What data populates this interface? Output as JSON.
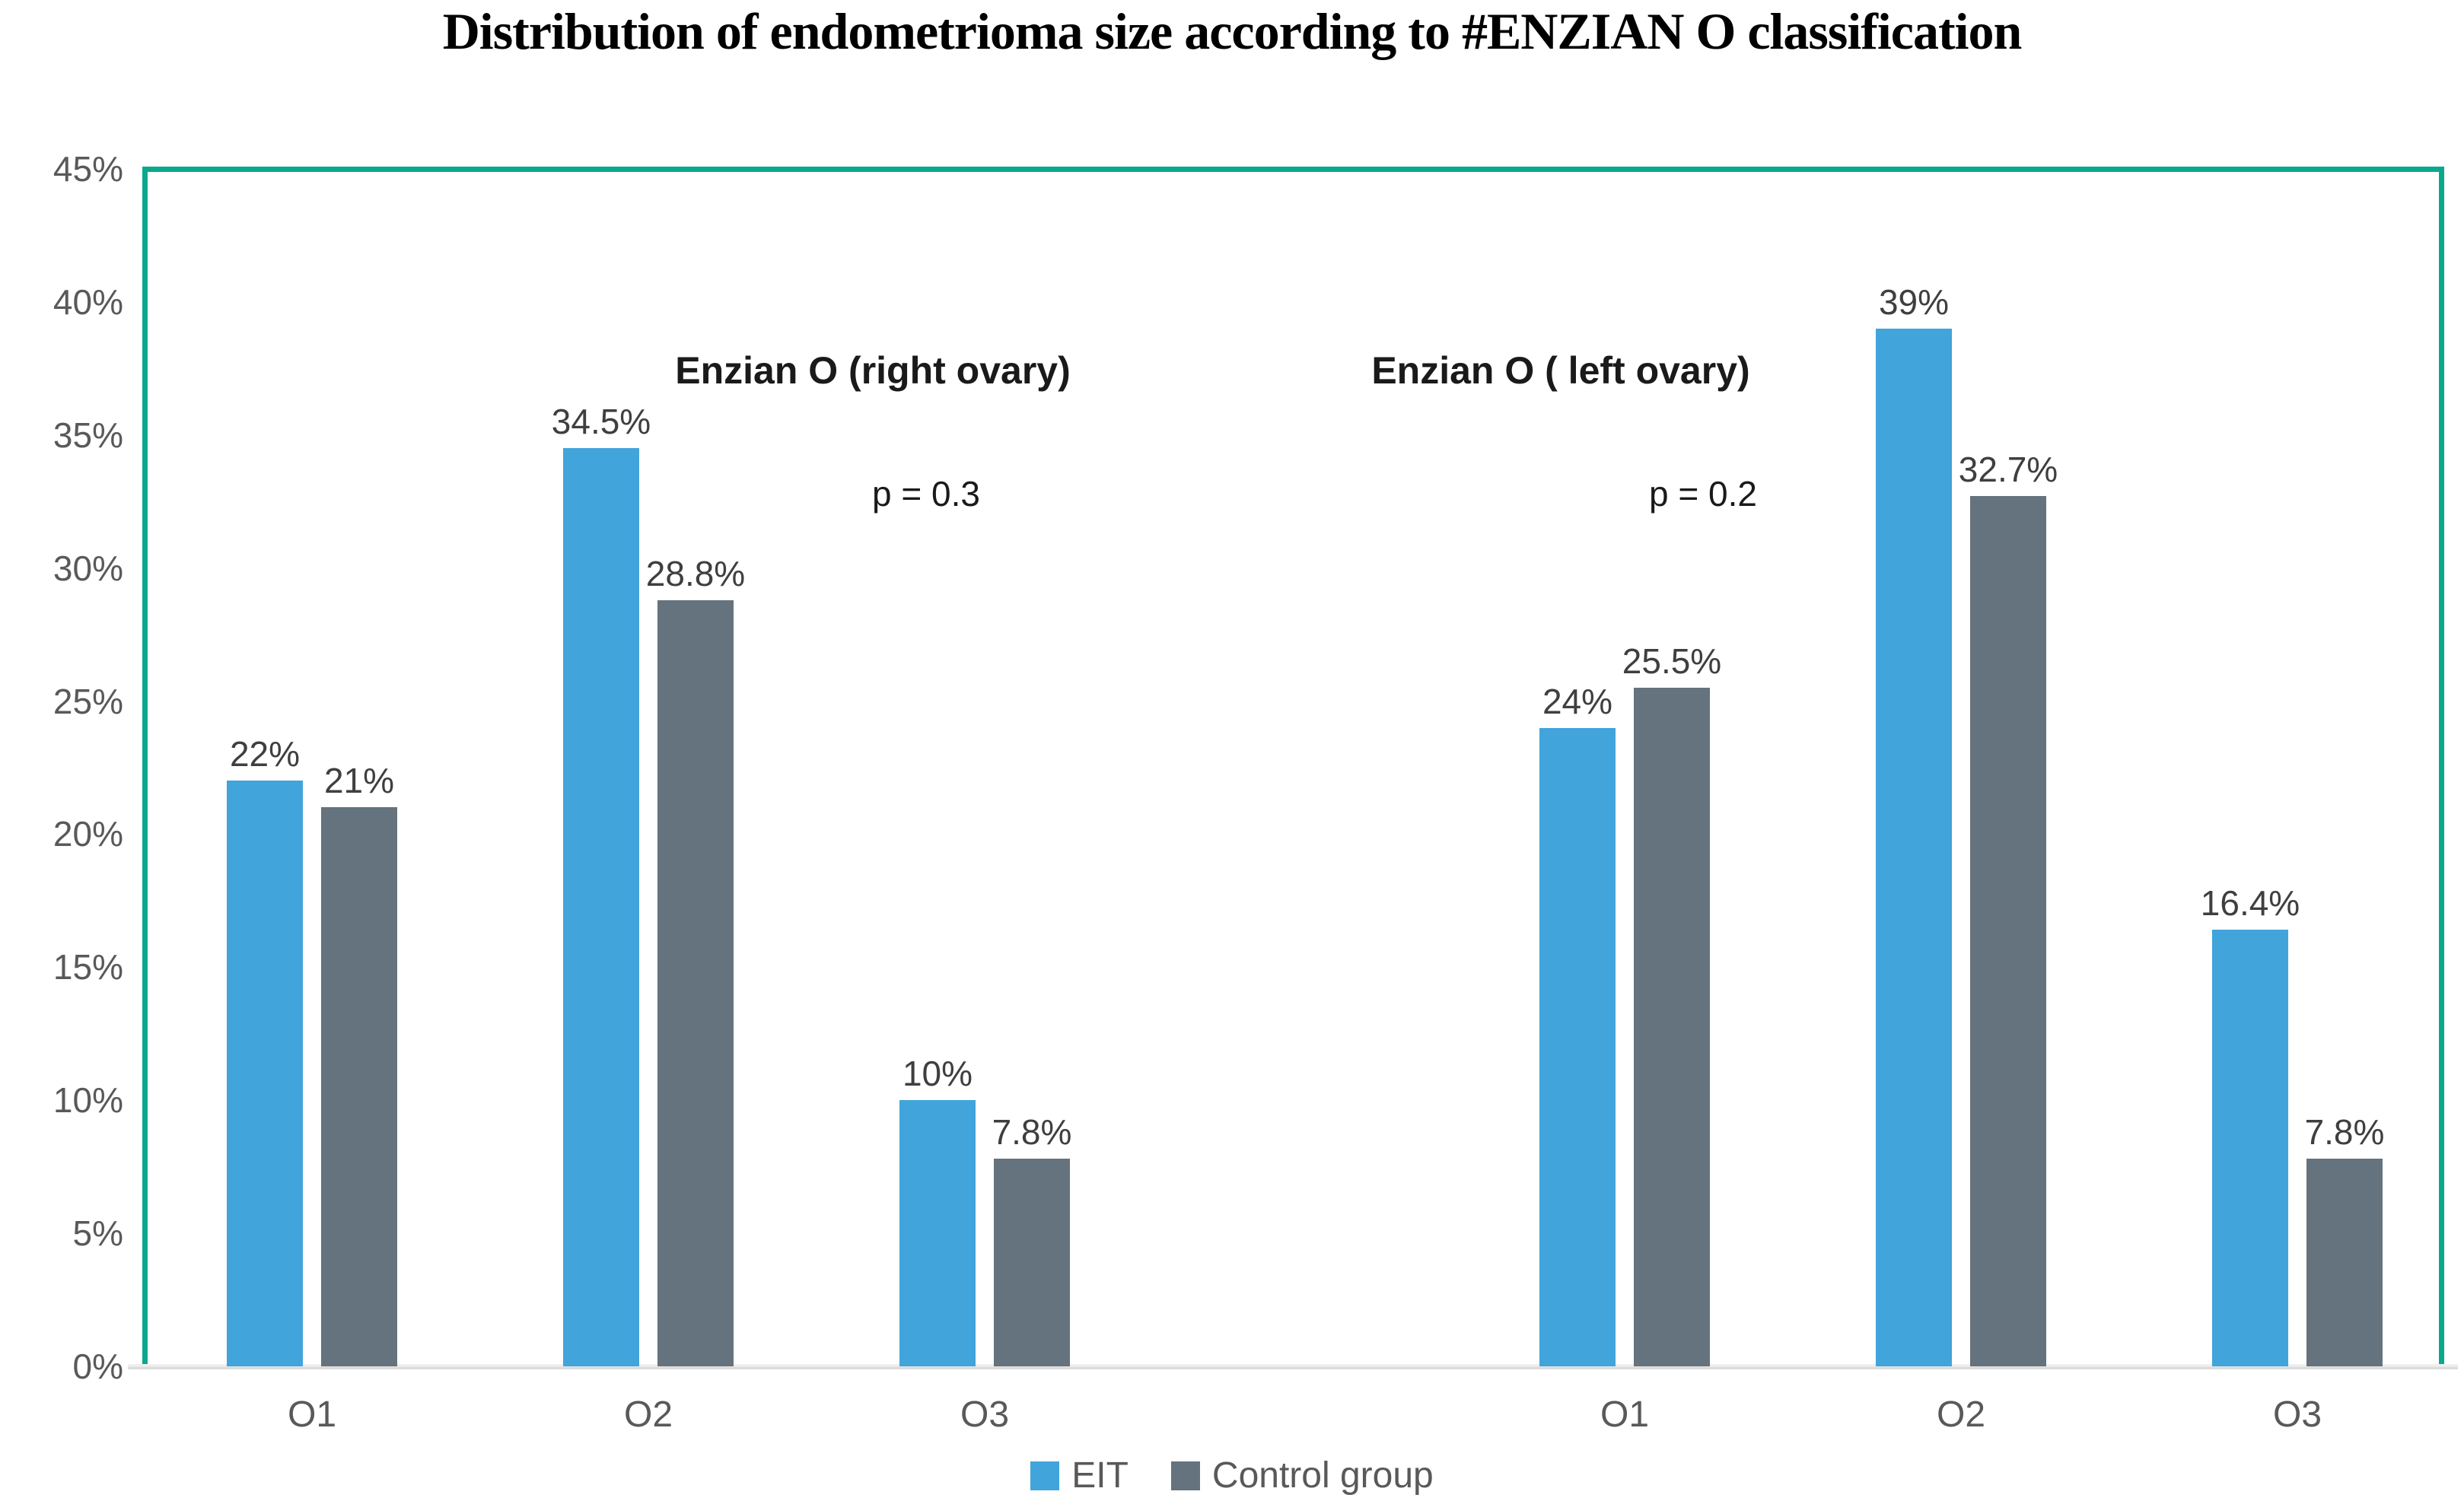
{
  "title": "Distribution of endometrioma size according to #ENZIAN O classification",
  "legend": [
    {
      "label": "EIT",
      "color": "#41a4db"
    },
    {
      "label": "Control group",
      "color": "#64737d"
    }
  ],
  "colors": {
    "eit": "#41a4db",
    "control": "#64737d",
    "border": "#0aa88c",
    "axis_text": "#595959",
    "data_label_text": "#3f3f3f",
    "baseline": "#dcdcdc"
  },
  "chart_data": {
    "type": "bar",
    "title": "Distribution of endometrioma size according to #ENZIAN O classification",
    "xlabel": "",
    "ylabel": "",
    "ylim": [
      0,
      45
    ],
    "grid": false,
    "legend_position": "bottom",
    "y_ticks": [
      "45%",
      "40%",
      "35%",
      "30%",
      "25%",
      "20%",
      "15%",
      "10%",
      "5%",
      "0%"
    ],
    "series_names": [
      "EIT",
      "Control group"
    ],
    "panels": [
      {
        "heading": "Enzian O (right ovary)",
        "p_value": "p = 0.3",
        "categories": [
          "O1",
          "O2",
          "O3"
        ],
        "series": [
          {
            "name": "EIT",
            "values": [
              22,
              34.5,
              10
            ],
            "labels": [
              "22%",
              "34.5%",
              "10%"
            ]
          },
          {
            "name": "Control group",
            "values": [
              21,
              28.8,
              7.8
            ],
            "labels": [
              "21%",
              "28.8%",
              "7.8%"
            ]
          }
        ]
      },
      {
        "heading": "Enzian O ( left ovary)",
        "p_value": "p = 0.2",
        "categories": [
          "O1",
          "O2",
          "O3"
        ],
        "series": [
          {
            "name": "EIT",
            "values": [
              24,
              39,
              16.4
            ],
            "labels": [
              "24%",
              "39%",
              "16.4%"
            ]
          },
          {
            "name": "Control group",
            "values": [
              25.5,
              32.7,
              7.8
            ],
            "labels": [
              "25.5%",
              "32.7%",
              "7.8%"
            ]
          }
        ]
      }
    ]
  }
}
